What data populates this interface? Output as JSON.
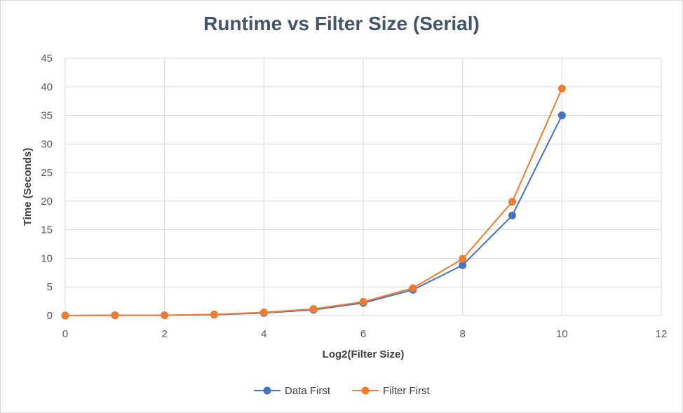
{
  "chart_data": {
    "type": "line",
    "title": "Runtime vs Filter Size (Serial)",
    "xlabel": "Log2(Filter Size)",
    "ylabel": "Time (Seconds)",
    "xlim": [
      0,
      12
    ],
    "ylim": [
      0,
      45
    ],
    "x_ticks": [
      0,
      2,
      4,
      6,
      8,
      10,
      12
    ],
    "y_ticks": [
      0,
      5,
      10,
      15,
      20,
      25,
      30,
      35,
      40,
      45
    ],
    "grid": true,
    "legend_position": "bottom",
    "series": [
      {
        "name": "Data First",
        "color": "#4472c4",
        "x": [
          0,
          1,
          2,
          3,
          4,
          5,
          6,
          7,
          8,
          9,
          10
        ],
        "values": [
          0.0,
          0.05,
          0.05,
          0.15,
          0.45,
          1.0,
          2.2,
          4.5,
          8.8,
          17.5,
          35.0
        ]
      },
      {
        "name": "Filter First",
        "color": "#ed7d31",
        "x": [
          0,
          1,
          2,
          3,
          4,
          5,
          6,
          7,
          8,
          9,
          10
        ],
        "values": [
          0.0,
          0.05,
          0.05,
          0.2,
          0.55,
          1.15,
          2.4,
          4.8,
          9.9,
          19.9,
          39.7
        ]
      }
    ]
  }
}
